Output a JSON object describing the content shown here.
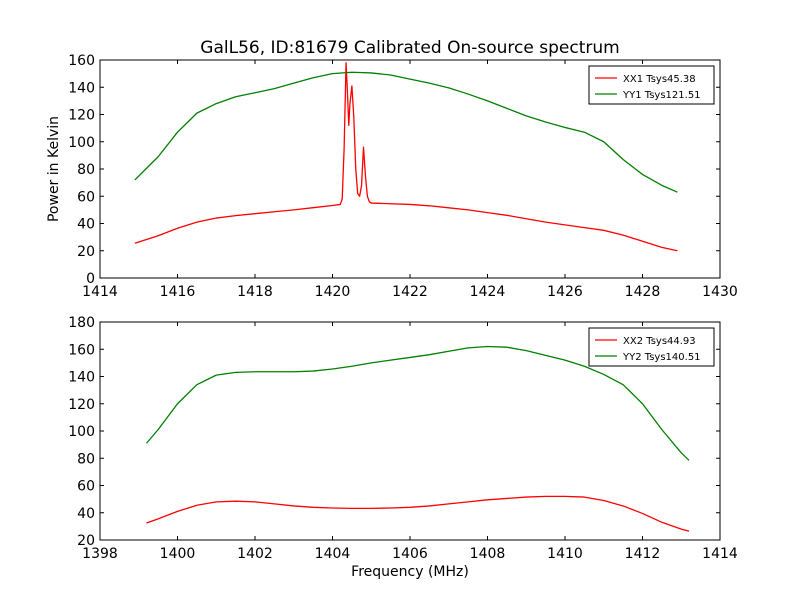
{
  "figure_title": "GalL56, ID:81679 Calibrated On-source spectrum",
  "chart_data": [
    {
      "type": "line",
      "title": "GalL56, ID:81679 Calibrated On-source spectrum",
      "xlabel": "",
      "ylabel": "Power in Kelvin",
      "xlim": [
        1414,
        1430
      ],
      "ylim": [
        0,
        160
      ],
      "xticks": [
        1414,
        1416,
        1418,
        1420,
        1422,
        1424,
        1426,
        1428,
        1430
      ],
      "yticks": [
        0,
        20,
        40,
        60,
        80,
        100,
        120,
        140,
        160
      ],
      "grid": false,
      "legend_position": "top-right",
      "series": [
        {
          "name": "XX1 Tsys45.38",
          "color": "#ff0000",
          "x": [
            1414.9,
            1415.5,
            1416,
            1416.5,
            1417,
            1417.5,
            1418,
            1418.5,
            1419,
            1419.5,
            1420,
            1420.2,
            1420.25,
            1420.3,
            1420.35,
            1420.38,
            1420.42,
            1420.45,
            1420.5,
            1420.55,
            1420.6,
            1420.65,
            1420.7,
            1420.75,
            1420.8,
            1420.85,
            1420.9,
            1420.95,
            1421,
            1421.5,
            1422,
            1422.5,
            1423,
            1423.5,
            1424,
            1424.5,
            1425,
            1425.5,
            1426,
            1426.5,
            1427,
            1427.5,
            1428,
            1428.5,
            1428.9
          ],
          "y": [
            25.5,
            31,
            36.5,
            41,
            44,
            45.8,
            47.2,
            48.6,
            50,
            51.6,
            53.2,
            54,
            58,
            95,
            158,
            140,
            112,
            128,
            141,
            118,
            80,
            62,
            60,
            68,
            96,
            75,
            60,
            56,
            55,
            54.5,
            54,
            53,
            51.5,
            50,
            48,
            46,
            43.5,
            41,
            39,
            37,
            35,
            31.5,
            27,
            22.5,
            20
          ]
        },
        {
          "name": "YY1 Tsys121.51",
          "color": "#008000",
          "x": [
            1414.9,
            1415.5,
            1416,
            1416.5,
            1417,
            1417.5,
            1418,
            1418.5,
            1419,
            1419.5,
            1420,
            1420.5,
            1421,
            1421.5,
            1422,
            1422.5,
            1423,
            1423.5,
            1424,
            1424.5,
            1425,
            1425.5,
            1426,
            1426.5,
            1427,
            1427.5,
            1428,
            1428.5,
            1428.9
          ],
          "y": [
            72,
            89,
            107,
            121,
            128,
            133,
            136,
            139,
            143,
            147,
            150,
            151,
            150.5,
            149,
            146,
            143,
            139.5,
            135,
            130,
            124.5,
            119,
            114.5,
            110.5,
            107,
            100,
            87,
            76,
            68,
            63
          ]
        }
      ]
    },
    {
      "type": "line",
      "title": "",
      "xlabel": "Frequency (MHz)",
      "ylabel": "",
      "xlim": [
        1398,
        1414
      ],
      "ylim": [
        20,
        180
      ],
      "xticks": [
        1398,
        1400,
        1402,
        1404,
        1406,
        1408,
        1410,
        1412,
        1414
      ],
      "yticks": [
        20,
        40,
        60,
        80,
        100,
        120,
        140,
        160,
        180
      ],
      "grid": false,
      "legend_position": "top-right",
      "series": [
        {
          "name": "XX2 Tsys44.93",
          "color": "#ff0000",
          "x": [
            1399.2,
            1399.5,
            1400,
            1400.5,
            1401,
            1401.5,
            1402,
            1402.5,
            1403,
            1403.5,
            1404,
            1404.5,
            1405,
            1405.5,
            1406,
            1406.5,
            1407,
            1407.5,
            1408,
            1408.5,
            1409,
            1409.5,
            1410,
            1410.5,
            1411,
            1411.5,
            1412,
            1412.5,
            1413,
            1413.2
          ],
          "y": [
            32.5,
            35.5,
            41,
            45.5,
            48,
            48.5,
            48,
            46.5,
            45,
            44,
            43.5,
            43.2,
            43.2,
            43.5,
            44,
            45,
            46.5,
            48,
            49.5,
            50.5,
            51.5,
            52,
            52,
            51.5,
            49,
            45,
            39.5,
            33,
            28,
            26.5
          ]
        },
        {
          "name": "YY2 Tsys140.51",
          "color": "#008000",
          "x": [
            1399.2,
            1399.5,
            1400,
            1400.5,
            1401,
            1401.5,
            1402,
            1402.5,
            1403,
            1403.5,
            1404,
            1404.5,
            1405,
            1405.5,
            1406,
            1406.5,
            1407,
            1407.5,
            1408,
            1408.5,
            1409,
            1409.5,
            1410,
            1410.5,
            1411,
            1411.5,
            1412,
            1412.5,
            1413,
            1413.2
          ],
          "y": [
            91,
            101,
            120,
            134,
            141,
            143,
            143.5,
            143.5,
            143.5,
            144,
            145.5,
            147.5,
            150,
            152,
            154,
            156,
            158.5,
            161,
            162,
            161.5,
            159,
            155.5,
            152,
            147.5,
            141.5,
            134,
            120,
            101,
            84,
            78.5
          ]
        }
      ]
    }
  ]
}
